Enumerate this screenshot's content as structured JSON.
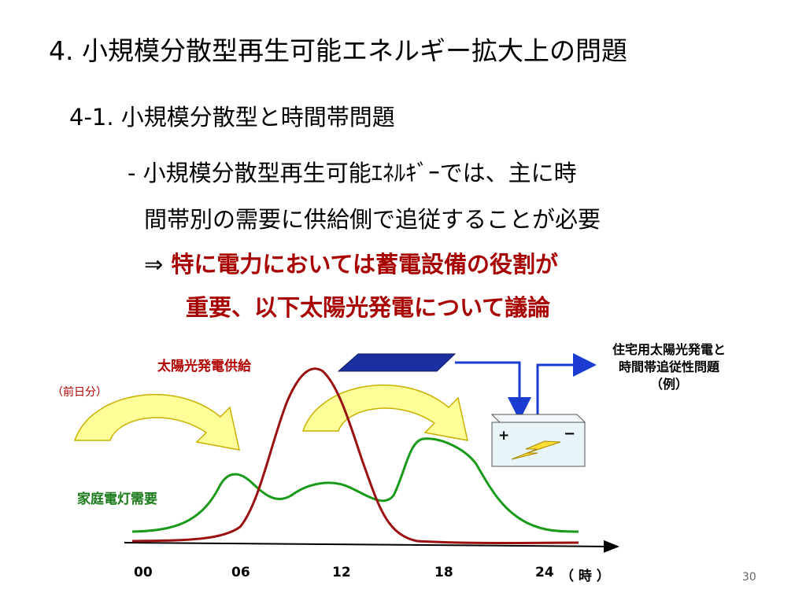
{
  "title": "4. 小規模分散型再生可能エネルギー拡大上の問題",
  "subtitle": "4-1. 小規模分散型と時間帯問題",
  "bullets": {
    "line1": "- 小規模分散型再生可能ｴﾈﾙｷﾞｰでは、主に時",
    "line2": "間帯別の需要に供給側で追従することが必要",
    "arrow": "⇒",
    "line3": "特に電力においては蓄電設備の役割が",
    "line4": "重要、以下太陽光発電について議論"
  },
  "diagram": {
    "solar_label": "太陽光発電供給",
    "prev_day_label": "（前日分）",
    "demand_label": "家庭電灯需要",
    "side_note": {
      "line1": "住宅用太陽光発電と",
      "line2": "時間帯追従性問題",
      "line3": "（例）"
    },
    "battery_plus": "+",
    "battery_minus": "−",
    "x_ticks": [
      "00",
      "06",
      "12",
      "18",
      "24"
    ],
    "x_unit": "（ 時 ）"
  },
  "page_number": "30",
  "colors": {
    "supply_curve": "#9b1010",
    "demand_curve": "#1a9a1a",
    "curved_arrow_fill": "#ffff99",
    "panel": "#1a2fa0",
    "flow_arrow": "#1a3cd0",
    "battery_fill": "#e8f4f8"
  }
}
